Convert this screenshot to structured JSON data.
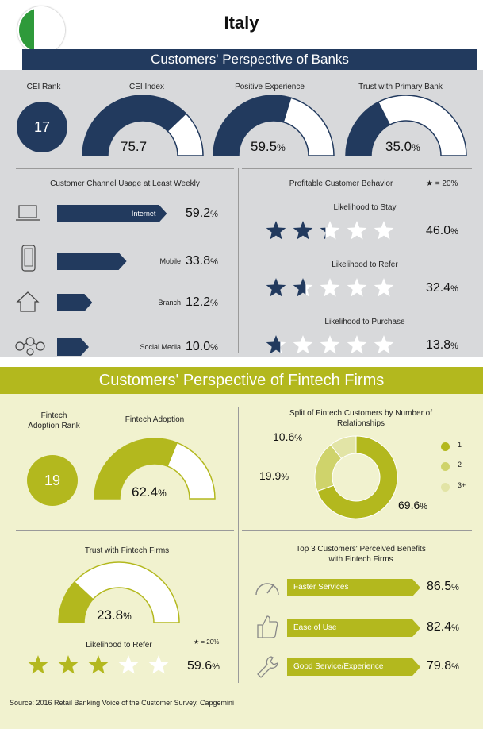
{
  "title": "Italy",
  "colors": {
    "navy": "#223a5e",
    "green": "#b3b81e",
    "flag_green": "#2e9a3a",
    "flag_white": "#ffffff",
    "flag_red": "#d22630"
  },
  "banks": {
    "heading": "Customers' Perspective of Banks",
    "cei_rank": {
      "label": "CEI Rank",
      "value": "17"
    },
    "gauges": [
      {
        "label": "CEI Index",
        "value": 75.7,
        "display": "75.7",
        "unit": ""
      },
      {
        "label": "Positive Experience",
        "value": 59.5,
        "display": "59.5",
        "unit": "%"
      },
      {
        "label": "Trust with Primary Bank",
        "value": 35.0,
        "display": "35.0",
        "unit": "%"
      }
    ],
    "channel_heading": "Customer Channel Usage at Least Weekly",
    "channels": [
      {
        "label": "Internet",
        "icon": "laptop-icon",
        "value": 59.2,
        "display": "59.2",
        "unit": "%"
      },
      {
        "label": "Mobile",
        "icon": "mobile-phone-icon",
        "value": 33.8,
        "display": "33.8",
        "unit": "%"
      },
      {
        "label": "Branch",
        "icon": "branch-house-icon",
        "value": 12.2,
        "display": "12.2",
        "unit": "%"
      },
      {
        "label": "Social Media",
        "icon": "social-network-icon",
        "value": 10.0,
        "display": "10.0",
        "unit": "%"
      }
    ],
    "behavior_heading": "Profitable Customer Behavior",
    "star_legend": "= 20%",
    "behaviors": [
      {
        "label": "Likelihood to Stay",
        "value": 46.0,
        "display": "46.0",
        "unit": "%"
      },
      {
        "label": "Likelihood to Refer",
        "value": 32.4,
        "display": "32.4",
        "unit": "%"
      },
      {
        "label": "Likelihood to Purchase",
        "value": 13.8,
        "display": "13.8",
        "unit": "%"
      }
    ]
  },
  "fintech": {
    "heading": "Customers' Perspective of Fintech Firms",
    "rank": {
      "label_line1": "Fintech",
      "label_line2": "Adoption Rank",
      "value": "19"
    },
    "adoption": {
      "label": "Fintech Adoption",
      "value": 62.4,
      "display": "62.4",
      "unit": "%"
    },
    "split": {
      "heading_line1": "Split of Fintech Customers by Number of",
      "heading_line2": "Relationships",
      "slices": [
        {
          "label": "1",
          "value": 69.6,
          "display": "69.6",
          "unit": "%",
          "color": "#b3b81e"
        },
        {
          "label": "2",
          "value": 19.9,
          "display": "19.9",
          "unit": "%",
          "color": "#cfd36b"
        },
        {
          "label": "3+",
          "value": 10.6,
          "display": "10.6",
          "unit": "%",
          "color": "#e2e4a6"
        }
      ]
    },
    "trust": {
      "label": "Trust with Fintech Firms",
      "value": 23.8,
      "display": "23.8",
      "unit": "%"
    },
    "refer": {
      "label": "Likelihood to Refer",
      "value": 59.6,
      "display": "59.6",
      "unit": "%",
      "star_legend": "= 20%"
    },
    "benefits_heading_line1": "Top 3 Customers' Perceived Benefits",
    "benefits_heading_line2": "with Fintech Firms",
    "benefits": [
      {
        "label": "Faster Services",
        "icon": "speedometer-icon",
        "value": 86.5,
        "display": "86.5",
        "unit": "%"
      },
      {
        "label": "Ease of Use",
        "icon": "thumbs-up-icon",
        "value": 82.4,
        "display": "82.4",
        "unit": "%"
      },
      {
        "label": "Good Service/Experience",
        "icon": "wrench-icon",
        "value": 79.8,
        "display": "79.8",
        "unit": "%"
      }
    ]
  },
  "source": "Source: 2016 Retail Banking Voice of the Customer Survey, Capgemini",
  "chart_data": [
    {
      "type": "bar",
      "title": "Customer Channel Usage at Least Weekly",
      "categories": [
        "Internet",
        "Mobile",
        "Branch",
        "Social Media"
      ],
      "values": [
        59.2,
        33.8,
        12.2,
        10.0
      ]
    },
    {
      "type": "bar",
      "title": "Profitable Customer Behavior",
      "categories": [
        "Likelihood to Stay",
        "Likelihood to Refer",
        "Likelihood to Purchase"
      ],
      "values": [
        46.0,
        32.4,
        13.8
      ]
    },
    {
      "type": "pie",
      "title": "Split of Fintech Customers by Number of Relationships",
      "categories": [
        "1",
        "2",
        "3+"
      ],
      "values": [
        69.6,
        19.9,
        10.6
      ]
    },
    {
      "type": "bar",
      "title": "Top 3 Customers' Perceived Benefits with Fintech Firms",
      "categories": [
        "Faster Services",
        "Ease of Use",
        "Good Service/Experience"
      ],
      "values": [
        86.5,
        82.4,
        79.8
      ]
    }
  ]
}
